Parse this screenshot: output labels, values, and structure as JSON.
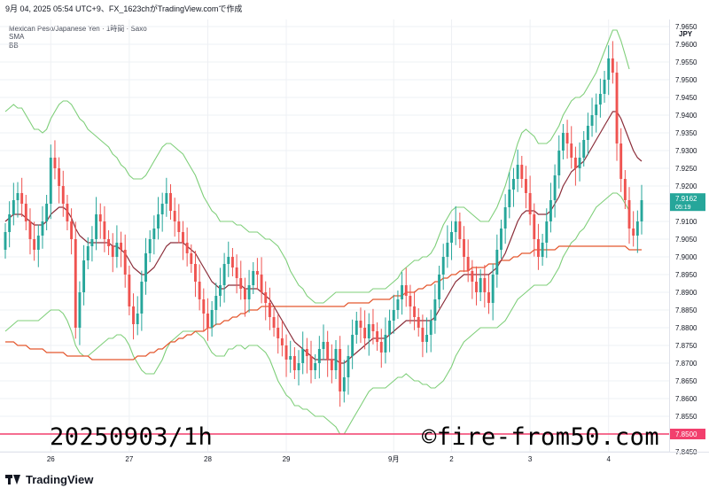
{
  "header": {
    "topline": "9月 04, 2025 05:54 UTC+9、FX_1623chがTradingView.comで作成",
    "symbol": "Mexican Peso/Japanese Yen · 1時間 · Saxo",
    "ind1": "SMA",
    "ind2": "BB"
  },
  "annotations": {
    "left": "20250903/1h",
    "right": "©fire-from50.com"
  },
  "footer": {
    "brand": "TradingView"
  },
  "colors": {
    "up": "#26a69a",
    "down": "#ef5350",
    "sma_fast": "#8b2e3a",
    "sma_slow": "#e4572e",
    "bb": "#7fcf7a",
    "last_label": "#26a69a",
    "line_label": "#f23f6d"
  },
  "chart_data": {
    "type": "candlestick",
    "currency": "JPY",
    "ylim": [
      7.845,
      7.967
    ],
    "y_ticks": [
      "7.9650",
      "7.9600",
      "7.9550",
      "7.9500",
      "7.9450",
      "7.9400",
      "7.9350",
      "7.9300",
      "7.9250",
      "7.9200",
      "7.9150",
      "7.9100",
      "7.9050",
      "7.9000",
      "7.8950",
      "7.8900",
      "7.8850",
      "7.8800",
      "7.8750",
      "7.8700",
      "7.8650",
      "7.8600",
      "7.8550",
      "7.8500",
      "7.8450"
    ],
    "x_labels": [
      {
        "label": "26",
        "index": 11
      },
      {
        "label": "27",
        "index": 30
      },
      {
        "label": "28",
        "index": 49
      },
      {
        "label": "29",
        "index": 68
      },
      {
        "label": "9月",
        "index": 94
      },
      {
        "label": "2",
        "index": 108
      },
      {
        "label": "3",
        "index": 127
      },
      {
        "label": "4",
        "index": 146
      }
    ],
    "last_price": {
      "value": "7.9162",
      "countdown": "05:19",
      "y": 7.9162
    },
    "horizontal_line": {
      "value": "7.8500",
      "y": 7.85
    },
    "candles_note": "OHLC approximated from chart",
    "close": [
      7.907,
      7.912,
      7.916,
      7.918,
      7.915,
      7.91,
      7.905,
      7.902,
      7.906,
      7.91,
      7.915,
      7.928,
      7.925,
      7.92,
      7.915,
      7.91,
      7.905,
      7.88,
      7.89,
      7.899,
      7.903,
      7.905,
      7.912,
      7.91,
      7.905,
      7.903,
      7.9,
      7.904,
      7.902,
      7.895,
      7.886,
      7.881,
      7.884,
      7.893,
      7.901,
      7.905,
      7.908,
      7.912,
      7.915,
      7.918,
      7.913,
      7.91,
      7.907,
      7.904,
      7.901,
      7.898,
      7.893,
      7.888,
      7.884,
      7.88,
      7.885,
      7.889,
      7.892,
      7.898,
      7.9,
      7.897,
      7.894,
      7.891,
      7.888,
      7.892,
      7.896,
      7.895,
      7.89,
      7.887,
      7.883,
      7.88,
      7.877,
      7.875,
      7.871,
      7.872,
      7.868,
      7.87,
      7.874,
      7.872,
      7.868,
      7.87,
      7.874,
      7.876,
      7.871,
      7.868,
      7.874,
      7.862,
      7.866,
      7.872,
      7.878,
      7.882,
      7.88,
      7.877,
      7.881,
      7.879,
      7.876,
      7.873,
      7.878,
      7.882,
      7.885,
      7.888,
      7.892,
      7.889,
      7.886,
      7.883,
      7.88,
      7.876,
      7.878,
      7.882,
      7.888,
      7.895,
      7.9,
      7.904,
      7.907,
      7.91,
      7.905,
      7.9,
      7.896,
      7.893,
      7.89,
      7.894,
      7.89,
      7.887,
      7.895,
      7.902,
      7.908,
      7.914,
      7.919,
      7.922,
      7.926,
      7.922,
      7.918,
      7.912,
      7.905,
      7.9,
      7.904,
      7.91,
      7.916,
      7.923,
      7.93,
      7.935,
      7.932,
      7.928,
      7.925,
      7.928,
      7.933,
      7.937,
      7.94,
      7.943,
      7.946,
      7.95,
      7.956,
      7.952,
      7.932,
      7.922,
      7.916,
      7.908,
      7.906,
      7.91,
      7.916
    ],
    "open": [
      7.902,
      7.907,
      7.912,
      7.916,
      7.918,
      7.915,
      7.91,
      7.905,
      7.902,
      7.906,
      7.91,
      7.915,
      7.928,
      7.925,
      7.92,
      7.915,
      7.91,
      7.905,
      7.88,
      7.89,
      7.899,
      7.903,
      7.905,
      7.912,
      7.91,
      7.905,
      7.903,
      7.9,
      7.904,
      7.902,
      7.895,
      7.886,
      7.881,
      7.884,
      7.893,
      7.901,
      7.905,
      7.908,
      7.912,
      7.915,
      7.918,
      7.913,
      7.91,
      7.907,
      7.904,
      7.901,
      7.898,
      7.893,
      7.888,
      7.884,
      7.88,
      7.885,
      7.889,
      7.892,
      7.898,
      7.9,
      7.897,
      7.894,
      7.891,
      7.888,
      7.892,
      7.896,
      7.895,
      7.89,
      7.887,
      7.883,
      7.88,
      7.877,
      7.875,
      7.871,
      7.872,
      7.868,
      7.87,
      7.874,
      7.872,
      7.868,
      7.87,
      7.874,
      7.876,
      7.871,
      7.868,
      7.874,
      7.862,
      7.866,
      7.872,
      7.878,
      7.882,
      7.88,
      7.877,
      7.881,
      7.879,
      7.876,
      7.873,
      7.878,
      7.882,
      7.885,
      7.888,
      7.892,
      7.889,
      7.886,
      7.883,
      7.88,
      7.876,
      7.878,
      7.882,
      7.888,
      7.895,
      7.9,
      7.904,
      7.907,
      7.91,
      7.905,
      7.9,
      7.896,
      7.893,
      7.89,
      7.894,
      7.89,
      7.887,
      7.895,
      7.902,
      7.908,
      7.914,
      7.919,
      7.922,
      7.926,
      7.922,
      7.918,
      7.912,
      7.905,
      7.9,
      7.904,
      7.91,
      7.916,
      7.923,
      7.93,
      7.935,
      7.932,
      7.928,
      7.925,
      7.928,
      7.933,
      7.937,
      7.94,
      7.943,
      7.946,
      7.95,
      7.956,
      7.952,
      7.932,
      7.922,
      7.916,
      7.908,
      7.906,
      7.91
    ],
    "sma_fast": [
      7.91,
      7.911,
      7.912,
      7.912,
      7.912,
      7.911,
      7.91,
      7.909,
      7.909,
      7.909,
      7.91,
      7.912,
      7.913,
      7.914,
      7.914,
      7.913,
      7.911,
      7.908,
      7.906,
      7.905,
      7.904,
      7.904,
      7.904,
      7.904,
      7.904,
      7.904,
      7.903,
      7.903,
      7.902,
      7.901,
      7.899,
      7.897,
      7.896,
      7.895,
      7.895,
      7.896,
      7.897,
      7.899,
      7.901,
      7.903,
      7.904,
      7.904,
      7.904,
      7.904,
      7.903,
      7.902,
      7.901,
      7.899,
      7.897,
      7.895,
      7.893,
      7.892,
      7.891,
      7.891,
      7.892,
      7.892,
      7.892,
      7.892,
      7.891,
      7.891,
      7.891,
      7.891,
      7.89,
      7.889,
      7.888,
      7.886,
      7.884,
      7.882,
      7.88,
      7.878,
      7.876,
      7.875,
      7.874,
      7.873,
      7.872,
      7.871,
      7.871,
      7.871,
      7.871,
      7.871,
      7.871,
      7.87,
      7.87,
      7.871,
      7.872,
      7.873,
      7.874,
      7.875,
      7.876,
      7.877,
      7.877,
      7.877,
      7.877,
      7.878,
      7.879,
      7.88,
      7.881,
      7.882,
      7.882,
      7.882,
      7.882,
      7.882,
      7.882,
      7.882,
      7.883,
      7.885,
      7.887,
      7.889,
      7.891,
      7.893,
      7.894,
      7.895,
      7.895,
      7.895,
      7.895,
      7.895,
      7.895,
      7.895,
      7.896,
      7.897,
      7.899,
      7.901,
      7.904,
      7.907,
      7.91,
      7.912,
      7.913,
      7.913,
      7.913,
      7.912,
      7.912,
      7.912,
      7.913,
      7.915,
      7.917,
      7.92,
      7.922,
      7.924,
      7.925,
      7.926,
      7.927,
      7.929,
      7.931,
      7.933,
      7.935,
      7.937,
      7.939,
      7.941,
      7.941,
      7.939,
      7.936,
      7.933,
      7.93,
      7.928,
      7.927
    ],
    "sma_slow": [
      7.876,
      7.876,
      7.876,
      7.875,
      7.875,
      7.875,
      7.874,
      7.874,
      7.874,
      7.874,
      7.873,
      7.873,
      7.873,
      7.873,
      7.873,
      7.872,
      7.872,
      7.872,
      7.872,
      7.872,
      7.872,
      7.871,
      7.871,
      7.871,
      7.871,
      7.871,
      7.871,
      7.871,
      7.871,
      7.871,
      7.871,
      7.871,
      7.872,
      7.872,
      7.872,
      7.873,
      7.873,
      7.874,
      7.874,
      7.875,
      7.876,
      7.876,
      7.877,
      7.877,
      7.878,
      7.878,
      7.879,
      7.879,
      7.879,
      7.88,
      7.88,
      7.881,
      7.881,
      7.882,
      7.882,
      7.883,
      7.883,
      7.884,
      7.884,
      7.885,
      7.885,
      7.885,
      7.886,
      7.886,
      7.886,
      7.886,
      7.886,
      7.886,
      7.886,
      7.886,
      7.886,
      7.886,
      7.886,
      7.886,
      7.886,
      7.886,
      7.886,
      7.886,
      7.886,
      7.886,
      7.886,
      7.886,
      7.886,
      7.887,
      7.887,
      7.887,
      7.887,
      7.887,
      7.887,
      7.888,
      7.888,
      7.888,
      7.888,
      7.888,
      7.889,
      7.889,
      7.889,
      7.89,
      7.89,
      7.89,
      7.891,
      7.891,
      7.892,
      7.892,
      7.893,
      7.893,
      7.894,
      7.894,
      7.895,
      7.895,
      7.896,
      7.896,
      7.896,
      7.897,
      7.897,
      7.897,
      7.897,
      7.898,
      7.898,
      7.898,
      7.899,
      7.899,
      7.899,
      7.9,
      7.9,
      7.901,
      7.901,
      7.901,
      7.902,
      7.902,
      7.902,
      7.902,
      7.902,
      7.902,
      7.903,
      7.903,
      7.903,
      7.903,
      7.903,
      7.903,
      7.903,
      7.903,
      7.903,
      7.903,
      7.903,
      7.903,
      7.903,
      7.903,
      7.903,
      7.903,
      7.903,
      7.902,
      7.902,
      7.902,
      7.902
    ],
    "bb_width": [
      0.031,
      0.031,
      0.031,
      0.03,
      0.03,
      0.029,
      0.028,
      0.027,
      0.027,
      0.026,
      0.026,
      0.027,
      0.028,
      0.029,
      0.03,
      0.031,
      0.032,
      0.033,
      0.033,
      0.033,
      0.032,
      0.031,
      0.03,
      0.029,
      0.028,
      0.027,
      0.026,
      0.025,
      0.024,
      0.024,
      0.024,
      0.025,
      0.026,
      0.027,
      0.028,
      0.029,
      0.03,
      0.03,
      0.03,
      0.029,
      0.028,
      0.027,
      0.026,
      0.025,
      0.024,
      0.023,
      0.022,
      0.021,
      0.02,
      0.02,
      0.02,
      0.02,
      0.019,
      0.019,
      0.018,
      0.018,
      0.017,
      0.017,
      0.017,
      0.016,
      0.016,
      0.016,
      0.016,
      0.016,
      0.017,
      0.018,
      0.019,
      0.019,
      0.019,
      0.018,
      0.018,
      0.017,
      0.017,
      0.016,
      0.016,
      0.016,
      0.016,
      0.016,
      0.017,
      0.018,
      0.019,
      0.02,
      0.02,
      0.019,
      0.018,
      0.017,
      0.016,
      0.015,
      0.014,
      0.014,
      0.014,
      0.014,
      0.014,
      0.014,
      0.014,
      0.014,
      0.015,
      0.015,
      0.016,
      0.017,
      0.017,
      0.018,
      0.018,
      0.019,
      0.02,
      0.021,
      0.022,
      0.022,
      0.022,
      0.021,
      0.02,
      0.019,
      0.018,
      0.017,
      0.016,
      0.015,
      0.015,
      0.015,
      0.016,
      0.017,
      0.018,
      0.019,
      0.02,
      0.021,
      0.022,
      0.023,
      0.023,
      0.022,
      0.021,
      0.02,
      0.02,
      0.02,
      0.02,
      0.02,
      0.02,
      0.02,
      0.02,
      0.02,
      0.02,
      0.019,
      0.019,
      0.019,
      0.019,
      0.019,
      0.02,
      0.021,
      0.022,
      0.023,
      0.023,
      0.022,
      0.021,
      0.02
    ]
  }
}
